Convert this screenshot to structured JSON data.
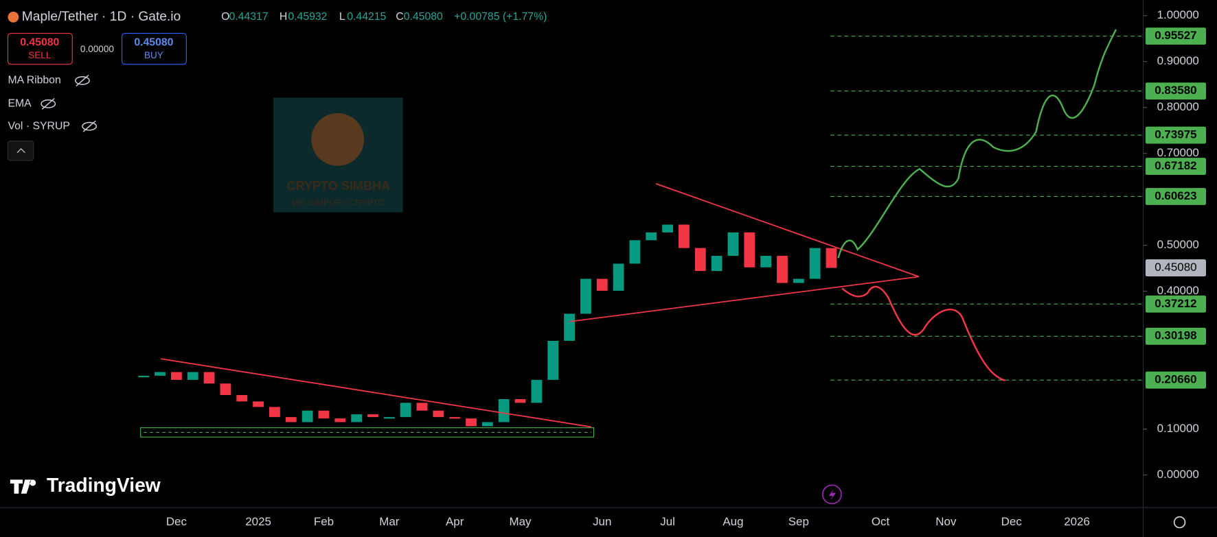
{
  "header": {
    "symbol": "Maple/Tether · 1D · Gate.io",
    "open_label": "O",
    "open": "0.44317",
    "high_label": "H",
    "high": "0.45932",
    "low_label": "L",
    "low": "0.44215",
    "close_label": "C",
    "close": "0.45080",
    "change": "+0.00785 (+1.77%)"
  },
  "trade": {
    "sell_price": "0.45080",
    "sell_label": "SELL",
    "spread": "0.00000",
    "buy_price": "0.45080",
    "buy_label": "BUY"
  },
  "indicators": [
    "MA Ribbon",
    "EMA",
    "Vol · SYRUP"
  ],
  "watermark": {
    "title": "CRYPTO SIMBHA",
    "subtitle": "WE SIMPLIFY CRYPTO"
  },
  "branding": "TradingView",
  "chart_data": {
    "type": "candlestick",
    "categories": [
      null,
      null,
      "Dec",
      null,
      null,
      null,
      null,
      "2025",
      null,
      null,
      null,
      "Feb",
      null,
      null,
      null,
      "Mar",
      null,
      null,
      null,
      "Apr",
      null,
      null,
      null,
      "May",
      null,
      null,
      null,
      null,
      "Jun",
      null,
      null,
      null,
      "Jul",
      null,
      null,
      null,
      "Aug",
      null,
      null,
      null,
      "Sep",
      null,
      null,
      null,
      null,
      "Oct",
      null,
      null,
      null,
      "Nov",
      null,
      null,
      null,
      "Dec",
      null,
      null,
      null,
      "2026",
      null,
      null,
      null
    ],
    "values": [
      0.216,
      0.224,
      0.207,
      0.224,
      0.199,
      0.174,
      0.16,
      0.148,
      0.126,
      0.115,
      0.14,
      0.123,
      0.115,
      0.132,
      0.126,
      0.126,
      0.157,
      0.14,
      0.126,
      0.123,
      0.106,
      0.115,
      0.165,
      0.157,
      0.207,
      0.292,
      0.351,
      0.427,
      0.401,
      0.46,
      0.511,
      0.528,
      0.545,
      0.494,
      0.444,
      0.477,
      0.528,
      0.452,
      0.477,
      0.418,
      0.427,
      0.494,
      0.4508,
      null,
      null,
      null,
      null,
      null,
      null,
      null,
      null,
      null,
      null,
      null,
      null,
      null,
      null,
      null,
      null,
      null,
      null
    ],
    "up_color": "#089981",
    "down_color": "#f23645",
    "ylim": [
      -0.071,
      1.034
    ],
    "yticks": [
      {
        "value": 0,
        "label": "0.00000"
      },
      {
        "value": 0.1,
        "label": "0.10000"
      },
      {
        "value": 0.4,
        "label": "0.40000"
      },
      {
        "value": 0.5,
        "label": "0.50000"
      },
      {
        "value": 0.7,
        "label": "0.70000"
      },
      {
        "value": 0.8,
        "label": "0.80000"
      },
      {
        "value": 0.9,
        "label": "0.90000"
      },
      {
        "value": 1,
        "label": "1.00000"
      }
    ],
    "levels": [
      {
        "value": 0.95527,
        "label": "0.95527"
      },
      {
        "value": 0.8358,
        "label": "0.83580"
      },
      {
        "value": 0.73975,
        "label": "0.73975"
      },
      {
        "value": 0.67182,
        "label": "0.67182"
      },
      {
        "value": 0.60623,
        "label": "0.60623"
      },
      {
        "value": 0.37212,
        "label": "0.37212"
      },
      {
        "value": 0.30198,
        "label": "0.30198"
      },
      {
        "value": 0.2066,
        "label": "0.20660"
      }
    ],
    "level_color": "#4caf50",
    "current_price": {
      "value": 0.4508,
      "label": "0.45080"
    }
  }
}
